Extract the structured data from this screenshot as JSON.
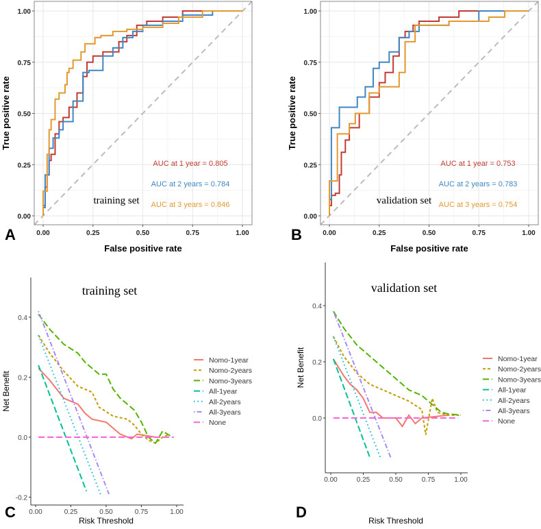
{
  "chart_data": [
    {
      "panel_label": "A",
      "type": "line",
      "annotation": "training set",
      "xlabel": "False positive rate",
      "ylabel": "True positive rate",
      "xlim": [
        0,
        1
      ],
      "ylim": [
        0,
        1
      ],
      "grid": true,
      "reference_line": "diagonal dashed gray",
      "xticks": [
        "0.00",
        "0.25",
        "0.50",
        "0.75",
        "1.00"
      ],
      "yticks": [
        "0.00",
        "0.25",
        "0.50",
        "0.75",
        "1.00"
      ],
      "series": [
        {
          "name": "AUC at 1 year = 0.805",
          "color": "#C23B33",
          "points": [
            [
              0,
              0
            ],
            [
              0.01,
              0.05
            ],
            [
              0.02,
              0.14
            ],
            [
              0.03,
              0.2
            ],
            [
              0.04,
              0.27
            ],
            [
              0.06,
              0.3
            ],
            [
              0.08,
              0.4
            ],
            [
              0.1,
              0.46
            ],
            [
              0.13,
              0.48
            ],
            [
              0.17,
              0.53
            ],
            [
              0.2,
              0.6
            ],
            [
              0.22,
              0.68
            ],
            [
              0.25,
              0.75
            ],
            [
              0.3,
              0.78
            ],
            [
              0.38,
              0.8
            ],
            [
              0.42,
              0.85
            ],
            [
              0.47,
              0.88
            ],
            [
              0.52,
              0.93
            ],
            [
              0.6,
              0.95
            ],
            [
              0.7,
              0.97
            ],
            [
              0.78,
              1
            ],
            [
              1,
              1
            ]
          ]
        },
        {
          "name": "AUC at 2 years = 0.784",
          "color": "#3F86C4",
          "points": [
            [
              0,
              0
            ],
            [
              0.01,
              0.04
            ],
            [
              0.03,
              0.2
            ],
            [
              0.05,
              0.33
            ],
            [
              0.08,
              0.38
            ],
            [
              0.1,
              0.42
            ],
            [
              0.15,
              0.46
            ],
            [
              0.2,
              0.56
            ],
            [
              0.23,
              0.7
            ],
            [
              0.3,
              0.71
            ],
            [
              0.35,
              0.78
            ],
            [
              0.4,
              0.82
            ],
            [
              0.45,
              0.87
            ],
            [
              0.5,
              0.9
            ],
            [
              0.6,
              0.93
            ],
            [
              0.7,
              0.95
            ],
            [
              0.85,
              0.98
            ],
            [
              1,
              1
            ]
          ]
        },
        {
          "name": "AUC at 3 years = 0.846",
          "color": "#E3992F",
          "points": [
            [
              0,
              0
            ],
            [
              0,
              0.07
            ],
            [
              0.02,
              0.12
            ],
            [
              0.03,
              0.3
            ],
            [
              0.04,
              0.42
            ],
            [
              0.06,
              0.47
            ],
            [
              0.08,
              0.57
            ],
            [
              0.11,
              0.6
            ],
            [
              0.12,
              0.64
            ],
            [
              0.13,
              0.7
            ],
            [
              0.15,
              0.72
            ],
            [
              0.19,
              0.76
            ],
            [
              0.21,
              0.8
            ],
            [
              0.26,
              0.84
            ],
            [
              0.29,
              0.87
            ],
            [
              0.35,
              0.88
            ],
            [
              0.42,
              0.9
            ],
            [
              0.5,
              0.91
            ],
            [
              0.6,
              0.92
            ],
            [
              0.68,
              0.94
            ],
            [
              0.8,
              0.97
            ],
            [
              1,
              1
            ]
          ]
        }
      ]
    },
    {
      "panel_label": "B",
      "type": "line",
      "annotation": "validation set",
      "xlabel": "False positive rate",
      "ylabel": "True positive rate",
      "xlim": [
        0,
        1
      ],
      "ylim": [
        0,
        1
      ],
      "grid": true,
      "reference_line": "diagonal dashed gray",
      "xticks": [
        "0.00",
        "0.25",
        "0.50",
        "0.75",
        "1.00"
      ],
      "yticks": [
        "0.00",
        "0.25",
        "0.50",
        "0.75",
        "1.00"
      ],
      "series": [
        {
          "name": "AUC at 1 year = 0.753",
          "color": "#C23B33",
          "points": [
            [
              0,
              0
            ],
            [
              0.01,
              0.05
            ],
            [
              0.03,
              0.1
            ],
            [
              0.05,
              0.11
            ],
            [
              0.06,
              0.2
            ],
            [
              0.08,
              0.31
            ],
            [
              0.1,
              0.37
            ],
            [
              0.15,
              0.43
            ],
            [
              0.2,
              0.5
            ],
            [
              0.25,
              0.58
            ],
            [
              0.28,
              0.65
            ],
            [
              0.32,
              0.7
            ],
            [
              0.35,
              0.78
            ],
            [
              0.38,
              0.87
            ],
            [
              0.42,
              0.9
            ],
            [
              0.45,
              0.93
            ],
            [
              0.55,
              0.95
            ],
            [
              0.65,
              0.97
            ],
            [
              0.7,
              1
            ],
            [
              1,
              1
            ]
          ]
        },
        {
          "name": "AUC at 2 years = 0.783",
          "color": "#3F86C4",
          "points": [
            [
              0,
              0
            ],
            [
              0.01,
              0.08
            ],
            [
              0.05,
              0.43
            ],
            [
              0.08,
              0.53
            ],
            [
              0.14,
              0.53
            ],
            [
              0.18,
              0.58
            ],
            [
              0.22,
              0.63
            ],
            [
              0.25,
              0.72
            ],
            [
              0.3,
              0.75
            ],
            [
              0.35,
              0.8
            ],
            [
              0.4,
              0.87
            ],
            [
              0.45,
              0.9
            ],
            [
              0.6,
              0.93
            ],
            [
              0.75,
              0.95
            ],
            [
              0.8,
              1
            ],
            [
              1,
              1
            ]
          ]
        },
        {
          "name": "AUC at 3 years = 0.754",
          "color": "#E3992F",
          "points": [
            [
              0,
              0
            ],
            [
              0,
              0.15
            ],
            [
              0.04,
              0.17
            ],
            [
              0.05,
              0.4
            ],
            [
              0.1,
              0.4
            ],
            [
              0.13,
              0.45
            ],
            [
              0.2,
              0.5
            ],
            [
              0.25,
              0.6
            ],
            [
              0.3,
              0.63
            ],
            [
              0.35,
              0.63
            ],
            [
              0.38,
              0.7
            ],
            [
              0.43,
              0.85
            ],
            [
              0.45,
              0.93
            ],
            [
              0.6,
              0.93
            ],
            [
              0.8,
              0.95
            ],
            [
              0.88,
              0.97
            ],
            [
              0.9,
              1
            ],
            [
              1,
              1
            ]
          ]
        }
      ]
    },
    {
      "panel_label": "C",
      "type": "line",
      "title": "training set",
      "xlabel": "Risk Threshold",
      "ylabel": "Net Benefit",
      "xlim": [
        0,
        1
      ],
      "ylim": [
        -0.2,
        0.4
      ],
      "grid": false,
      "legend": "right",
      "xticks": [
        "0.00",
        "0.25",
        "0.50",
        "0.75",
        "1.00"
      ],
      "yticks": [
        "-0.2",
        "0.0",
        "0.2",
        "0.4"
      ],
      "series": [
        {
          "name": "Nomo-1year",
          "color": "#F8766D",
          "dash": "solid",
          "points": [
            [
              0.02,
              0.23
            ],
            [
              0.1,
              0.19
            ],
            [
              0.2,
              0.13
            ],
            [
              0.3,
              0.11
            ],
            [
              0.35,
              0.08
            ],
            [
              0.4,
              0.06
            ],
            [
              0.5,
              0.05
            ],
            [
              0.55,
              0.03
            ],
            [
              0.6,
              0.01
            ],
            [
              0.68,
              -0.005
            ],
            [
              0.72,
              0.01
            ],
            [
              0.85,
              0
            ]
          ]
        },
        {
          "name": "Nomo-2years",
          "color": "#C49A00",
          "dash": "dashed",
          "points": [
            [
              0.02,
              0.34
            ],
            [
              0.1,
              0.28
            ],
            [
              0.2,
              0.22
            ],
            [
              0.3,
              0.17
            ],
            [
              0.4,
              0.15
            ],
            [
              0.45,
              0.1
            ],
            [
              0.55,
              0.07
            ],
            [
              0.65,
              0.06
            ],
            [
              0.7,
              0.04
            ],
            [
              0.75,
              0.01
            ],
            [
              0.8,
              -0.01
            ],
            [
              0.85,
              -0.02
            ],
            [
              0.9,
              0
            ],
            [
              0.95,
              0.01
            ]
          ]
        },
        {
          "name": "Nomo-3years",
          "color": "#53B400",
          "dash": "longdash",
          "points": [
            [
              0.02,
              0.41
            ],
            [
              0.1,
              0.36
            ],
            [
              0.2,
              0.31
            ],
            [
              0.3,
              0.28
            ],
            [
              0.35,
              0.25
            ],
            [
              0.4,
              0.23
            ],
            [
              0.45,
              0.21
            ],
            [
              0.5,
              0.21
            ],
            [
              0.55,
              0.16
            ],
            [
              0.6,
              0.13
            ],
            [
              0.65,
              0.11
            ],
            [
              0.7,
              0.09
            ],
            [
              0.75,
              0.05
            ],
            [
              0.8,
              0
            ],
            [
              0.85,
              -0.02
            ],
            [
              0.9,
              0.02
            ],
            [
              0.97,
              0
            ]
          ]
        },
        {
          "name": "All-1year",
          "color": "#00C094",
          "dash": "longdash",
          "points": [
            [
              0.02,
              0.24
            ],
            [
              0.36,
              -0.18
            ]
          ]
        },
        {
          "name": "All-2years",
          "color": "#00B6EB",
          "dash": "dotted",
          "points": [
            [
              0.02,
              0.34
            ],
            [
              0.46,
              -0.19
            ]
          ]
        },
        {
          "name": "All-3years",
          "color": "#A58AFF",
          "dash": "dotdash",
          "points": [
            [
              0.02,
              0.42
            ],
            [
              0.52,
              -0.19
            ]
          ]
        },
        {
          "name": "None",
          "color": "#FB61D7",
          "dash": "longdash",
          "points": [
            [
              0.02,
              0
            ],
            [
              0.98,
              0
            ]
          ]
        }
      ]
    },
    {
      "panel_label": "D",
      "type": "line",
      "title": "validation set",
      "xlabel": "Risk Threshold",
      "ylabel": "Net Benefit",
      "xlim": [
        0,
        1
      ],
      "ylim": [
        -0.14,
        0.4
      ],
      "grid": false,
      "legend": "right",
      "xticks": [
        "0.00",
        "0.25",
        "0.50",
        "0.75",
        "1.00"
      ],
      "yticks": [
        "0.0",
        "0.2",
        "0.4"
      ],
      "series": [
        {
          "name": "Nomo-1year",
          "color": "#F8766D",
          "dash": "solid",
          "points": [
            [
              0.02,
              0.21
            ],
            [
              0.1,
              0.15
            ],
            [
              0.15,
              0.12
            ],
            [
              0.2,
              0.1
            ],
            [
              0.25,
              0.07
            ],
            [
              0.3,
              0.02
            ],
            [
              0.35,
              0.02
            ],
            [
              0.4,
              0
            ],
            [
              0.5,
              0
            ],
            [
              0.55,
              -0.03
            ],
            [
              0.6,
              0.01
            ],
            [
              0.65,
              -0.02
            ],
            [
              0.7,
              0
            ],
            [
              0.8,
              0.005
            ],
            [
              0.9,
              0.01
            ]
          ]
        },
        {
          "name": "Nomo-2years",
          "color": "#C49A00",
          "dash": "dashed",
          "points": [
            [
              0.02,
              0.29
            ],
            [
              0.1,
              0.22
            ],
            [
              0.2,
              0.16
            ],
            [
              0.3,
              0.12
            ],
            [
              0.4,
              0.1
            ],
            [
              0.5,
              0.08
            ],
            [
              0.6,
              0.06
            ],
            [
              0.7,
              0.03
            ],
            [
              0.73,
              -0.06
            ],
            [
              0.78,
              0.07
            ],
            [
              0.82,
              0.02
            ],
            [
              0.9,
              0.01
            ],
            [
              1,
              0.01
            ]
          ]
        },
        {
          "name": "Nomo-3years",
          "color": "#53B400",
          "dash": "longdash",
          "points": [
            [
              0.02,
              0.38
            ],
            [
              0.1,
              0.32
            ],
            [
              0.2,
              0.26
            ],
            [
              0.3,
              0.22
            ],
            [
              0.4,
              0.18
            ],
            [
              0.5,
              0.14
            ],
            [
              0.6,
              0.1
            ],
            [
              0.7,
              0.08
            ],
            [
              0.75,
              0.06
            ],
            [
              0.8,
              0.04
            ],
            [
              0.85,
              0.02
            ],
            [
              0.9,
              0.015
            ],
            [
              1,
              0.01
            ]
          ]
        },
        {
          "name": "All-1year",
          "color": "#00C094",
          "dash": "longdash",
          "points": [
            [
              0.02,
              0.21
            ],
            [
              0.3,
              -0.14
            ]
          ]
        },
        {
          "name": "All-2years",
          "color": "#00B6EB",
          "dash": "dotted",
          "points": [
            [
              0.02,
              0.29
            ],
            [
              0.38,
              -0.14
            ]
          ]
        },
        {
          "name": "All-3years",
          "color": "#A58AFF",
          "dash": "dotdash",
          "points": [
            [
              0.02,
              0.38
            ],
            [
              0.46,
              -0.14
            ]
          ]
        },
        {
          "name": "None",
          "color": "#FB61D7",
          "dash": "longdash",
          "points": [
            [
              0.02,
              0
            ],
            [
              0.98,
              0
            ]
          ]
        }
      ]
    }
  ]
}
